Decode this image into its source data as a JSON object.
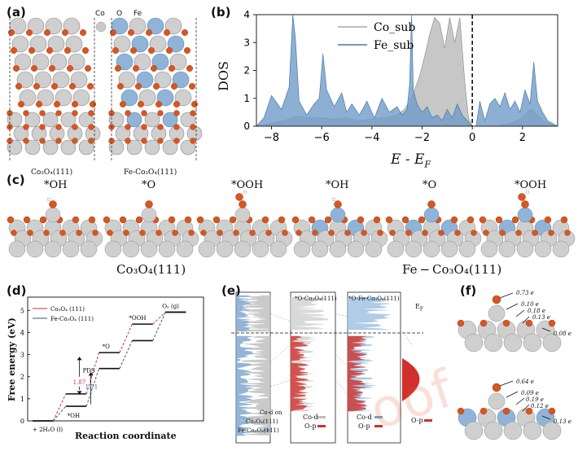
{
  "panel_a": {
    "label": "(a)",
    "legend": [
      "Co",
      "O",
      "Fe"
    ],
    "captions": [
      "Co₃O₄(111)",
      "Fe-Co₃O₄(111)"
    ]
  },
  "panel_b": {
    "label": "(b)",
    "ylabel": "DOS",
    "xlabel": "E - E_F",
    "xlabel_main": "E - E",
    "xlabel_sub": "F",
    "xticks": [
      "−8",
      "−6",
      "−4",
      "−2",
      "0",
      "2"
    ],
    "yticks": [
      "0",
      "1",
      "2",
      "3",
      "4"
    ],
    "legend": [
      "Co_sub",
      "Fe_sub"
    ]
  },
  "panel_c": {
    "label": "(c)",
    "adsorbates": [
      "*OH",
      "*O",
      "*OOH",
      "*OH",
      "*O",
      "*OOH"
    ],
    "captions": [
      "Co₃O₄(111)",
      "Fe − Co₃O₄(111)"
    ]
  },
  "panel_d": {
    "label": "(d)",
    "ylabel": "Free energy (eV)",
    "xlabel": "Reaction coordinate",
    "yticks": [
      "0",
      "1",
      "2",
      "3",
      "4",
      "5"
    ],
    "legend": [
      "Co₃O₄ (111)",
      "Fe-Co₃O₄ (111)"
    ],
    "states": [
      "+ 2H₂O (l)",
      "*OH",
      "*O",
      "*OOH",
      "O₂ (g)"
    ],
    "pds": "PDS",
    "pds_values": [
      "1.87",
      "1.71"
    ]
  },
  "panel_e": {
    "label": "(e)",
    "headers": [
      "*O-Co₃O₄(111)",
      "*O-Fe-Co₃O₄(111)"
    ],
    "ef_label": "E_F",
    "left_legend": [
      "Co-d on",
      "Co₃O₄(111)",
      "Fe-Co₃O₄(111)"
    ],
    "mid_legend": [
      "Co-d",
      "O-p"
    ],
    "right_legend": [
      "Co-d",
      "O-p"
    ],
    "far_legend": [
      "O-p"
    ]
  },
  "panel_f": {
    "label": "(f)",
    "top_charges": [
      "0.73 e",
      "0.10 e",
      "0.18 e",
      "0.13 e",
      "0.08 e"
    ],
    "bottom_charges": [
      "0.64 e",
      "0.09 e",
      "0.19 e",
      "0.12 e",
      "0.13 e"
    ]
  },
  "watermark": "oof",
  "chart_data": [
    {
      "type": "area",
      "title": "",
      "xlabel": "E - E_F",
      "ylabel": "DOS",
      "xlim": [
        -8.6,
        3.4
      ],
      "ylim": [
        0,
        4
      ],
      "series": [
        {
          "name": "Co_sub",
          "x": [
            -8.6,
            -8,
            -7.5,
            -7,
            -6.5,
            -6,
            -5.5,
            -5,
            -4.5,
            -4,
            -3.5,
            -3,
            -2.7,
            -2.5,
            -2.3,
            -2.1,
            -1.9,
            -1.7,
            -1.5,
            -1.3,
            -1.1,
            -0.9,
            -0.7,
            -0.5,
            -0.3,
            -0.15,
            0,
            0.3,
            0.6,
            1,
            1.5,
            2,
            2.3,
            2.5,
            2.7,
            3,
            3.4
          ],
          "y": [
            0,
            0.1,
            0.2,
            0.35,
            0.3,
            0.3,
            0.25,
            0.3,
            0.2,
            0.25,
            0.3,
            0.4,
            0.6,
            0.9,
            1.3,
            1.8,
            2.5,
            3.3,
            3.9,
            3.7,
            2.8,
            3.9,
            3.0,
            3.9,
            1.6,
            0.3,
            0,
            0,
            0,
            0,
            0.1,
            0.3,
            0.6,
            0.5,
            0.3,
            0.1,
            0
          ]
        },
        {
          "name": "Fe_sub",
          "x": [
            -8.6,
            -8.3,
            -8,
            -7.6,
            -7.3,
            -7.15,
            -7.05,
            -6.9,
            -6.6,
            -6.3,
            -6.1,
            -5.95,
            -5.8,
            -5.5,
            -5.2,
            -5,
            -4.8,
            -4.5,
            -4.2,
            -3.9,
            -3.6,
            -3.3,
            -3,
            -2.8,
            -2.6,
            -2.5,
            -2.42,
            -2.35,
            -2.2,
            -2,
            -1.8,
            -1.6,
            -1.4,
            -1.2,
            -1,
            -0.8,
            -0.6,
            -0.4,
            -0.2,
            0,
            0.15,
            0.3,
            0.5,
            0.7,
            0.9,
            1.1,
            1.3,
            1.5,
            1.7,
            1.9,
            2.1,
            2.3,
            2.45,
            2.6,
            2.8,
            3,
            3.2,
            3.4
          ],
          "y": [
            0,
            0.3,
            1.1,
            0.6,
            1.4,
            4,
            3.2,
            0.9,
            0.4,
            0.8,
            1.0,
            2.6,
            1.3,
            0.7,
            1.2,
            0.5,
            0.8,
            0.4,
            0.9,
            0.3,
            1.0,
            0.5,
            0.7,
            0.4,
            0.6,
            1.5,
            4,
            1.3,
            0.8,
            0.5,
            0.7,
            0.3,
            0.4,
            0.2,
            0.6,
            0.3,
            0.8,
            0.4,
            0.2,
            0,
            0,
            0.9,
            0.2,
            0.8,
            1.0,
            0.7,
            1.2,
            0.6,
            0.9,
            0.5,
            1.3,
            0.8,
            2.3,
            0.9,
            0.5,
            0.2,
            0.1,
            0
          ]
        }
      ],
      "grid": false,
      "legend": "top-center",
      "vlines": [
        0
      ]
    },
    {
      "type": "line",
      "title": "",
      "xlabel": "Reaction coordinate",
      "ylabel": "Free energy (eV)",
      "ylim": [
        0,
        5.6
      ],
      "categories": [
        "+ 2H₂O (l)",
        "*OH",
        "*O",
        "*OOH",
        "O₂ (g)"
      ],
      "series": [
        {
          "name": "Co₃O₄ (111)",
          "values": [
            0,
            1.22,
            3.09,
            4.38,
            4.92
          ]
        },
        {
          "name": "Fe-Co₃O₄ (111)",
          "values": [
            0,
            0.66,
            2.37,
            3.63,
            4.92
          ]
        }
      ],
      "annotations": [
        "PDS",
        "1.87",
        "1.71"
      ],
      "legend": "top-left"
    }
  ]
}
